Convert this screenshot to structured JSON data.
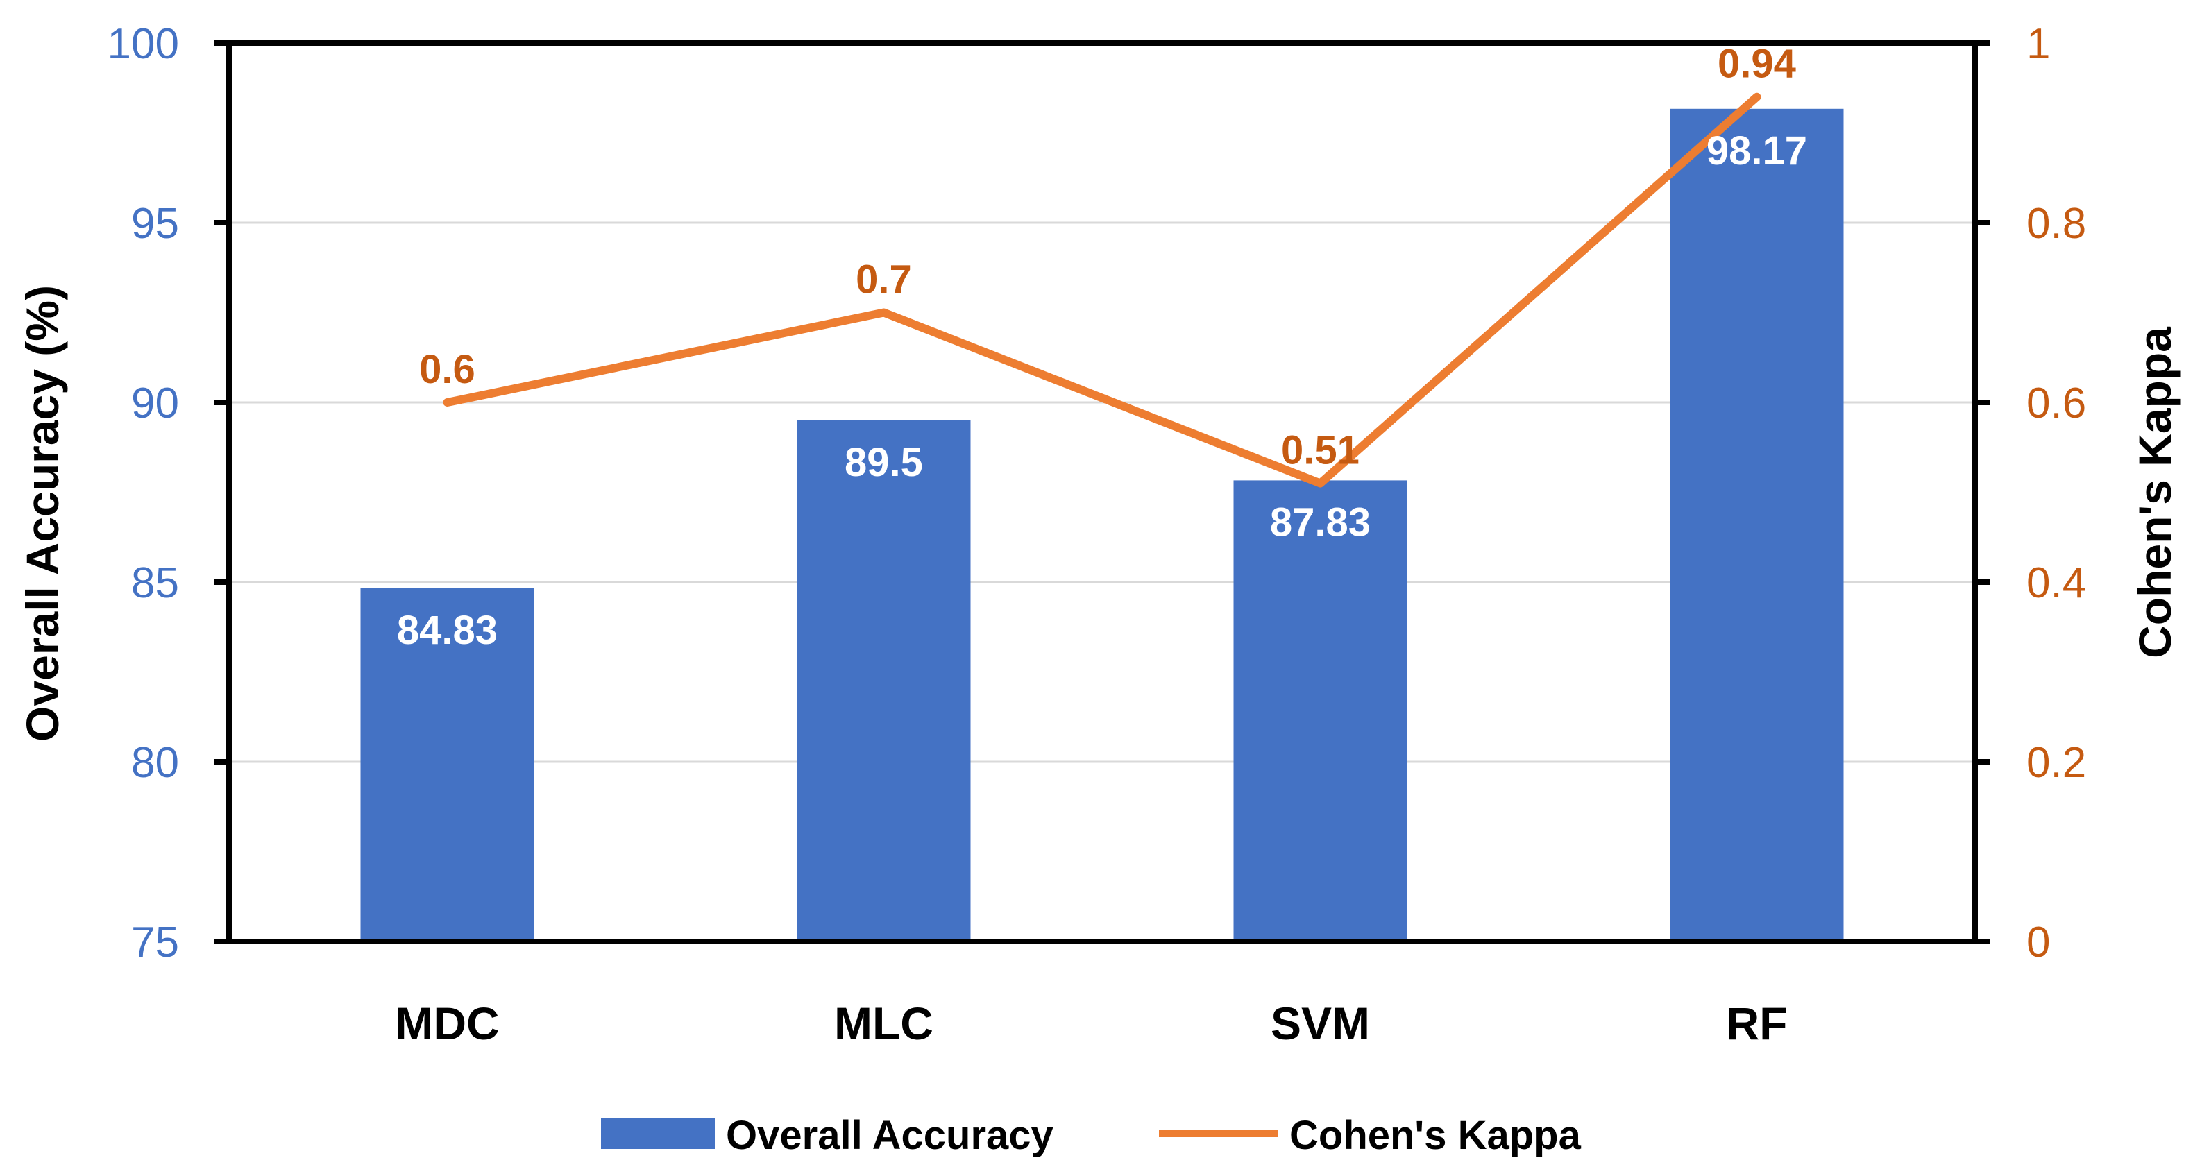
{
  "chart_data": {
    "type": "bar+line",
    "categories": [
      "MDC",
      "MLC",
      "SVM",
      "RF"
    ],
    "series": [
      {
        "name": "Overall Accuracy",
        "kind": "bar",
        "axis": "left",
        "values": [
          84.83,
          89.5,
          87.83,
          98.17
        ],
        "labels": [
          "84.83",
          "89.5",
          "87.83",
          "98.17"
        ],
        "color": "#4472C4"
      },
      {
        "name": "Cohen's Kappa",
        "kind": "line",
        "axis": "right",
        "values": [
          0.6,
          0.7,
          0.51,
          0.94
        ],
        "labels": [
          "0.6",
          "0.7",
          "0.51",
          "0.94"
        ],
        "color": "#ED7D31"
      }
    ],
    "left_axis": {
      "label": "Overall Accuracy (%)",
      "range": [
        75,
        100
      ],
      "ticks": [
        "75",
        "80",
        "85",
        "90",
        "95",
        "100"
      ],
      "tick_color": "#4472C4"
    },
    "right_axis": {
      "label": "Cohen's Kappa",
      "range": [
        0,
        1
      ],
      "ticks": [
        "0",
        "0.2",
        "0.4",
        "0.6",
        "0.8",
        "1"
      ],
      "tick_color": "#C55A11"
    },
    "data_label_colors": {
      "bar": "#FFFFFF",
      "line": "#C55A11"
    },
    "grid": true,
    "legend_position": "bottom-center",
    "legend": [
      {
        "label": "Overall Accuracy",
        "symbol": "box",
        "color": "#4472C4"
      },
      {
        "label": "Cohen's Kappa",
        "symbol": "line",
        "color": "#ED7D31"
      }
    ]
  }
}
